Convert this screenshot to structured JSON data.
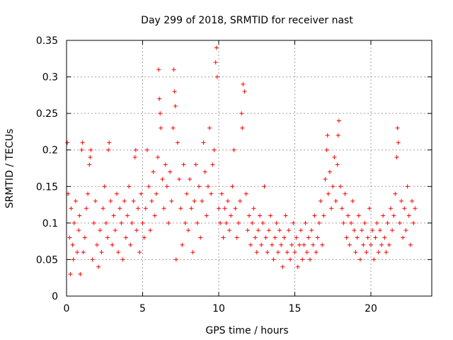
{
  "chart_data": {
    "type": "scatter",
    "title": "Day 299 of 2018, SRMTID for receiver nast",
    "xlabel": "GPS time / hours",
    "ylabel": "SRMTID / TECUs",
    "xlim": [
      0,
      24
    ],
    "ylim": [
      0,
      0.35
    ],
    "x_ticks": [
      "0",
      "5",
      "10",
      "15",
      "20"
    ],
    "x_tick_values": [
      0,
      5,
      10,
      15,
      20
    ],
    "y_ticks": [
      "0",
      "0.05",
      "0.1",
      "0.15",
      "0.2",
      "0.25",
      "0.3",
      "0.35"
    ],
    "y_tick_values": [
      0,
      0.05,
      0.1,
      0.15,
      0.2,
      0.25,
      0.3,
      0.35
    ],
    "grid": true,
    "marker": "+",
    "colors": {
      "series": "#ff0000",
      "grid": "#a0a0a0",
      "axis": "#000000"
    },
    "series": [
      {
        "points": [
          [
            0.05,
            0.21
          ],
          [
            0.1,
            0.14
          ],
          [
            0.2,
            0.08
          ],
          [
            0.25,
            0.03
          ],
          [
            0.3,
            0.12
          ],
          [
            0.4,
            0.07
          ],
          [
            0.45,
            0.05
          ],
          [
            0.5,
            0.1
          ],
          [
            0.6,
            0.13
          ],
          [
            0.7,
            0.06
          ],
          [
            0.8,
            0.09
          ],
          [
            0.85,
            0.11
          ],
          [
            0.9,
            0.03
          ],
          [
            1.0,
            0.2
          ],
          [
            1.05,
            0.21
          ],
          [
            1.1,
            0.06
          ],
          [
            1.2,
            0.08
          ],
          [
            1.3,
            0.12
          ],
          [
            1.4,
            0.14
          ],
          [
            1.5,
            0.18
          ],
          [
            1.55,
            0.19
          ],
          [
            1.6,
            0.2
          ],
          [
            1.7,
            0.05
          ],
          [
            1.8,
            0.1
          ],
          [
            1.9,
            0.13
          ],
          [
            2.0,
            0.07
          ],
          [
            2.1,
            0.04
          ],
          [
            2.2,
            0.09
          ],
          [
            2.3,
            0.06
          ],
          [
            2.4,
            0.12
          ],
          [
            2.5,
            0.15
          ],
          [
            2.6,
            0.1
          ],
          [
            2.7,
            0.08
          ],
          [
            2.75,
            0.2
          ],
          [
            2.8,
            0.21
          ],
          [
            2.9,
            0.13
          ],
          [
            3.0,
            0.07
          ],
          [
            3.1,
            0.11
          ],
          [
            3.2,
            0.09
          ],
          [
            3.3,
            0.14
          ],
          [
            3.4,
            0.06
          ],
          [
            3.5,
            0.12
          ],
          [
            3.6,
            0.1
          ],
          [
            3.7,
            0.05
          ],
          [
            3.8,
            0.13
          ],
          [
            3.9,
            0.08
          ],
          [
            4.0,
            0.11
          ],
          [
            4.1,
            0.15
          ],
          [
            4.2,
            0.07
          ],
          [
            4.3,
            0.1
          ],
          [
            4.4,
            0.13
          ],
          [
            4.5,
            0.19
          ],
          [
            4.55,
            0.2
          ],
          [
            4.6,
            0.09
          ],
          [
            4.7,
            0.12
          ],
          [
            4.8,
            0.06
          ],
          [
            4.9,
            0.14
          ],
          [
            5.0,
            0.1
          ],
          [
            5.1,
            0.08
          ],
          [
            5.2,
            0.12
          ],
          [
            5.3,
            0.2
          ],
          [
            5.4,
            0.15
          ],
          [
            5.5,
            0.09
          ],
          [
            5.6,
            0.13
          ],
          [
            5.7,
            0.17
          ],
          [
            5.8,
            0.11
          ],
          [
            5.9,
            0.14
          ],
          [
            6.0,
            0.19
          ],
          [
            6.05,
            0.31
          ],
          [
            6.1,
            0.27
          ],
          [
            6.15,
            0.25
          ],
          [
            6.2,
            0.23
          ],
          [
            6.3,
            0.16
          ],
          [
            6.4,
            0.12
          ],
          [
            6.5,
            0.18
          ],
          [
            6.6,
            0.15
          ],
          [
            6.7,
            0.1
          ],
          [
            6.8,
            0.17
          ],
          [
            6.9,
            0.13
          ],
          [
            7.0,
            0.23
          ],
          [
            7.05,
            0.31
          ],
          [
            7.1,
            0.28
          ],
          [
            7.15,
            0.26
          ],
          [
            7.2,
            0.05
          ],
          [
            7.3,
            0.21
          ],
          [
            7.4,
            0.16
          ],
          [
            7.5,
            0.12
          ],
          [
            7.6,
            0.07
          ],
          [
            7.7,
            0.18
          ],
          [
            7.8,
            0.1
          ],
          [
            7.9,
            0.14
          ],
          [
            8.0,
            0.09
          ],
          [
            8.1,
            0.16
          ],
          [
            8.2,
            0.12
          ],
          [
            8.3,
            0.06
          ],
          [
            8.4,
            0.13
          ],
          [
            8.5,
            0.18
          ],
          [
            8.6,
            0.1
          ],
          [
            8.7,
            0.15
          ],
          [
            8.8,
            0.08
          ],
          [
            8.9,
            0.13
          ],
          [
            9.0,
            0.21
          ],
          [
            9.1,
            0.17
          ],
          [
            9.2,
            0.11
          ],
          [
            9.3,
            0.15
          ],
          [
            9.4,
            0.23
          ],
          [
            9.5,
            0.14
          ],
          [
            9.6,
            0.18
          ],
          [
            9.7,
            0.2
          ],
          [
            9.8,
            0.32
          ],
          [
            9.85,
            0.34
          ],
          [
            9.9,
            0.3
          ],
          [
            10.0,
            0.12
          ],
          [
            10.1,
            0.1
          ],
          [
            10.2,
            0.14
          ],
          [
            10.3,
            0.08
          ],
          [
            10.4,
            0.12
          ],
          [
            10.5,
            0.1
          ],
          [
            10.6,
            0.13
          ],
          [
            10.7,
            0.09
          ],
          [
            10.8,
            0.11
          ],
          [
            10.9,
            0.15
          ],
          [
            11.0,
            0.2
          ],
          [
            11.1,
            0.12
          ],
          [
            11.2,
            0.08
          ],
          [
            11.3,
            0.1
          ],
          [
            11.4,
            0.13
          ],
          [
            11.5,
            0.25
          ],
          [
            11.55,
            0.23
          ],
          [
            11.6,
            0.29
          ],
          [
            11.7,
            0.28
          ],
          [
            11.8,
            0.14
          ],
          [
            11.9,
            0.09
          ],
          [
            12.0,
            0.11
          ],
          [
            12.1,
            0.07
          ],
          [
            12.2,
            0.1
          ],
          [
            12.3,
            0.12
          ],
          [
            12.4,
            0.08
          ],
          [
            12.5,
            0.06
          ],
          [
            12.6,
            0.09
          ],
          [
            12.7,
            0.11
          ],
          [
            12.8,
            0.07
          ],
          [
            12.9,
            0.1
          ],
          [
            13.0,
            0.15
          ],
          [
            13.1,
            0.08
          ],
          [
            13.2,
            0.06
          ],
          [
            13.3,
            0.09
          ],
          [
            13.4,
            0.11
          ],
          [
            13.5,
            0.07
          ],
          [
            13.6,
            0.05
          ],
          [
            13.7,
            0.08
          ],
          [
            13.8,
            0.1
          ],
          [
            13.9,
            0.06
          ],
          [
            14.0,
            0.09
          ],
          [
            14.1,
            0.07
          ],
          [
            14.2,
            0.04
          ],
          [
            14.3,
            0.08
          ],
          [
            14.4,
            0.11
          ],
          [
            14.5,
            0.06
          ],
          [
            14.6,
            0.09
          ],
          [
            14.7,
            0.05
          ],
          [
            14.8,
            0.07
          ],
          [
            14.9,
            0.1
          ],
          [
            15.0,
            0.06
          ],
          [
            15.1,
            0.08
          ],
          [
            15.2,
            0.04
          ],
          [
            15.3,
            0.07
          ],
          [
            15.4,
            0.09
          ],
          [
            15.5,
            0.05
          ],
          [
            15.6,
            0.07
          ],
          [
            15.7,
            0.1
          ],
          [
            15.8,
            0.06
          ],
          [
            15.9,
            0.08
          ],
          [
            16.0,
            0.05
          ],
          [
            16.1,
            0.09
          ],
          [
            16.2,
            0.07
          ],
          [
            16.3,
            0.11
          ],
          [
            16.4,
            0.06
          ],
          [
            16.5,
            0.08
          ],
          [
            16.6,
            0.1
          ],
          [
            16.7,
            0.13
          ],
          [
            16.8,
            0.07
          ],
          [
            16.9,
            0.11
          ],
          [
            17.0,
            0.16
          ],
          [
            17.1,
            0.2
          ],
          [
            17.15,
            0.22
          ],
          [
            17.2,
            0.14
          ],
          [
            17.3,
            0.17
          ],
          [
            17.4,
            0.12
          ],
          [
            17.5,
            0.15
          ],
          [
            17.6,
            0.19
          ],
          [
            17.7,
            0.13
          ],
          [
            17.8,
            0.18
          ],
          [
            17.85,
            0.22
          ],
          [
            17.9,
            0.24
          ],
          [
            18.0,
            0.15
          ],
          [
            18.1,
            0.12
          ],
          [
            18.2,
            0.1
          ],
          [
            18.3,
            0.14
          ],
          [
            18.4,
            0.08
          ],
          [
            18.5,
            0.11
          ],
          [
            18.6,
            0.07
          ],
          [
            18.7,
            0.1
          ],
          [
            18.8,
            0.13
          ],
          [
            18.9,
            0.09
          ],
          [
            19.0,
            0.06
          ],
          [
            19.1,
            0.08
          ],
          [
            19.2,
            0.11
          ],
          [
            19.3,
            0.05
          ],
          [
            19.4,
            0.09
          ],
          [
            19.5,
            0.07
          ],
          [
            19.6,
            0.1
          ],
          [
            19.7,
            0.06
          ],
          [
            19.8,
            0.08
          ],
          [
            19.9,
            0.12
          ],
          [
            20.0,
            0.07
          ],
          [
            20.1,
            0.09
          ],
          [
            20.2,
            0.05
          ],
          [
            20.3,
            0.08
          ],
          [
            20.4,
            0.1
          ],
          [
            20.5,
            0.06
          ],
          [
            20.6,
            0.09
          ],
          [
            20.7,
            0.07
          ],
          [
            20.8,
            0.11
          ],
          [
            20.9,
            0.08
          ],
          [
            21.0,
            0.06
          ],
          [
            21.1,
            0.1
          ],
          [
            21.2,
            0.07
          ],
          [
            21.3,
            0.12
          ],
          [
            21.4,
            0.09
          ],
          [
            21.5,
            0.11
          ],
          [
            21.6,
            0.14
          ],
          [
            21.7,
            0.19
          ],
          [
            21.75,
            0.23
          ],
          [
            21.8,
            0.21
          ],
          [
            21.9,
            0.1
          ],
          [
            22.0,
            0.13
          ],
          [
            22.1,
            0.08
          ],
          [
            22.2,
            0.12
          ],
          [
            22.3,
            0.09
          ],
          [
            22.4,
            0.15
          ],
          [
            22.5,
            0.11
          ],
          [
            22.6,
            0.07
          ],
          [
            22.7,
            0.13
          ],
          [
            22.8,
            0.1
          ],
          [
            22.9,
            0.12
          ]
        ]
      }
    ]
  }
}
